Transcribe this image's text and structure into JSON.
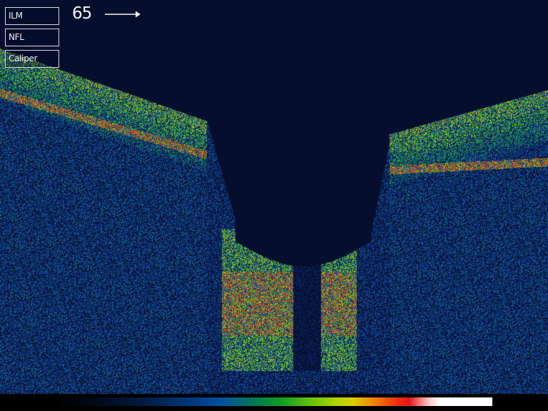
{
  "toolbar": {
    "buttons": [
      {
        "id": "ilm",
        "label": "ILM"
      },
      {
        "id": "nfl",
        "label": "NFL"
      },
      {
        "id": "caliper",
        "label": "Caliper"
      }
    ]
  },
  "scan": {
    "frame_number": "65",
    "direction_icon": "arrow-right-icon"
  },
  "colors": {
    "background": "#000814",
    "noise_blue": "#1a4fa8",
    "noise_teal": "#127a8c",
    "tissue_green": "#2fc020",
    "tissue_yellow": "#c8e000",
    "hot_red": "#e82010",
    "label_text": "#f0f0f0"
  }
}
